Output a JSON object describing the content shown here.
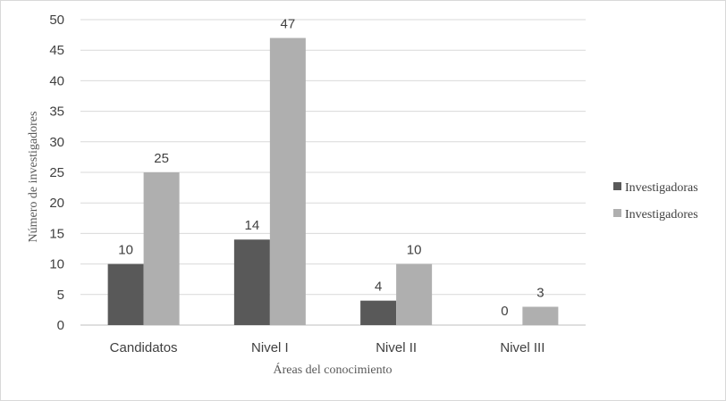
{
  "chart_data": {
    "type": "bar",
    "title": "",
    "xlabel": "Áreas del conocimiento",
    "ylabel": "Número de investigadores",
    "categories": [
      "Candidatos",
      "Nivel I",
      "Nivel II",
      "Nivel III"
    ],
    "series": [
      {
        "name": "Investigadoras",
        "values": [
          10,
          14,
          4,
          0
        ],
        "color": "#595959"
      },
      {
        "name": "Investigadores",
        "values": [
          25,
          47,
          10,
          3
        ],
        "color": "#afafaf"
      }
    ],
    "ylim": [
      0,
      50
    ],
    "yticks": [
      0,
      5,
      10,
      15,
      20,
      25,
      30,
      35,
      40,
      45,
      50
    ],
    "grid": true,
    "legend_position": "right",
    "data_labels": true
  }
}
